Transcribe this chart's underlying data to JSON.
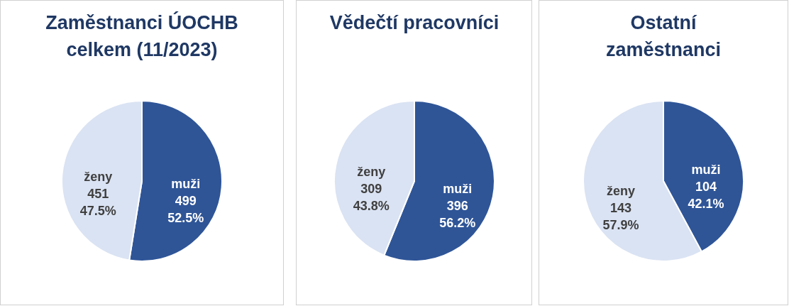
{
  "chart_data": [
    {
      "type": "pie",
      "title": "Zaměstnanci ÚOCHB celkem (11/2023)",
      "categories": [
        "muži",
        "ženy"
      ],
      "values": [
        499,
        451
      ],
      "colors": [
        "#2f5597",
        "#dae3f3"
      ],
      "value_labels": [
        "499\n52.5%",
        "451\n47.5%"
      ],
      "legend": false
    },
    {
      "type": "pie",
      "title": "Vědečtí pracovníci",
      "categories": [
        "muži",
        "ženy"
      ],
      "values": [
        396,
        309
      ],
      "colors": [
        "#2f5597",
        "#dae3f3"
      ],
      "value_labels": [
        "396\n56.2%",
        "309\n43.8%"
      ],
      "legend": false
    },
    {
      "type": "pie",
      "title": "Ostatní zaměstnanci",
      "categories": [
        "muži",
        "ženy"
      ],
      "values": [
        104,
        143
      ],
      "colors": [
        "#2f5597",
        "#dae3f3"
      ],
      "value_labels": [
        "104\n42.1%",
        "143\n57.9%"
      ],
      "legend": false
    }
  ]
}
